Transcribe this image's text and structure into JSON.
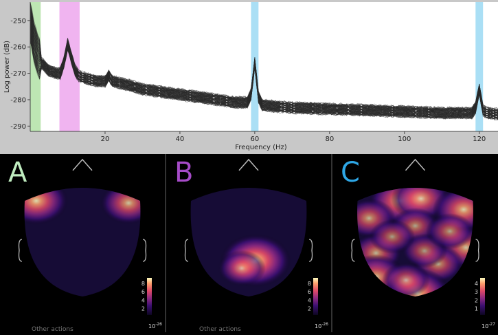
{
  "chart_data": [
    {
      "type": "line",
      "xlabel": "Frequency (Hz)",
      "ylabel": "Log power  (dB)",
      "xlim": [
        0,
        125
      ],
      "ylim": [
        -292,
        -243
      ],
      "xticks": [
        20,
        40,
        60,
        80,
        100,
        120
      ],
      "yticks": [
        -250,
        -260,
        -270,
        -280,
        -290
      ],
      "series_count": 102,
      "mean_spectrum": {
        "x": [
          0,
          1,
          2,
          3,
          5,
          7,
          8,
          9,
          10,
          11,
          12,
          13,
          15,
          18,
          20,
          21,
          22,
          25,
          30,
          35,
          40,
          45,
          50,
          55,
          58,
          59,
          60,
          61,
          62,
          65,
          70,
          80,
          90,
          100,
          110,
          118,
          119,
          120,
          121,
          122,
          125
        ],
        "y": [
          -250,
          -258,
          -263,
          -266,
          -269,
          -270,
          -270,
          -266,
          -259,
          -264,
          -269,
          -271,
          -272,
          -273,
          -273,
          -271,
          -273,
          -274,
          -276,
          -277,
          -278,
          -279,
          -280,
          -281,
          -281,
          -278,
          -266,
          -279,
          -282,
          -282.5,
          -283,
          -283.5,
          -284,
          -284.5,
          -285,
          -285,
          -283,
          -276,
          -284,
          -285,
          -285.5
        ]
      },
      "bands": [
        {
          "name": "",
          "from": 0,
          "to": 2.8,
          "color": "#bde6b3"
        },
        {
          "name": "",
          "from": 7.8,
          "to": 13.2,
          "color": "#f0b4f0"
        },
        {
          "name": "",
          "from": 59,
          "to": 61,
          "color": "#aadff5"
        },
        {
          "name": "",
          "from": 119,
          "to": 121,
          "color": "#aadff5"
        }
      ],
      "line_color": "#2a2a2a"
    },
    {
      "type": "heatmap",
      "panel": "A",
      "letter": "A",
      "letter_color": "#bfecbf",
      "colormap": "magma",
      "colorbar_ticks": [
        "2",
        "4",
        "6",
        "8"
      ],
      "scale": "10",
      "scale_exp": "-26",
      "hotspots": [
        {
          "x": 0.1,
          "y": 0.12,
          "value": 0.85
        },
        {
          "x": 0.9,
          "y": 0.14,
          "value": 0.7
        }
      ]
    },
    {
      "type": "heatmap",
      "panel": "B",
      "letter": "B",
      "letter_color": "#a64bc8",
      "colormap": "magma",
      "colorbar_ticks": [
        "2",
        "4",
        "6",
        "8"
      ],
      "scale": "10",
      "scale_exp": "-26",
      "hotspots": [
        {
          "x": 0.56,
          "y": 0.67,
          "value": 1.0
        },
        {
          "x": 0.44,
          "y": 0.74,
          "value": 0.5
        }
      ]
    },
    {
      "type": "heatmap",
      "panel": "C",
      "letter": "C",
      "letter_color": "#2ea7e6",
      "colormap": "magma",
      "colorbar_ticks": [
        "1",
        "2",
        "3",
        "4"
      ],
      "scale": "10",
      "scale_exp": "-27",
      "hotspots": [
        {
          "x": 0.37,
          "y": 0.12,
          "value": 0.85
        },
        {
          "x": 0.55,
          "y": 0.1,
          "value": 0.75
        },
        {
          "x": 0.92,
          "y": 0.2,
          "value": 0.8
        },
        {
          "x": 0.1,
          "y": 0.28,
          "value": 0.6
        },
        {
          "x": 0.5,
          "y": 0.35,
          "value": 0.5
        },
        {
          "x": 0.94,
          "y": 0.55,
          "value": 0.7
        },
        {
          "x": 0.16,
          "y": 0.6,
          "value": 0.6
        },
        {
          "x": 0.7,
          "y": 0.7,
          "value": 0.55
        },
        {
          "x": 0.16,
          "y": 0.82,
          "value": 0.75
        },
        {
          "x": 0.52,
          "y": 0.97,
          "value": 0.9
        },
        {
          "x": 0.58,
          "y": 0.58,
          "value": 0.45
        },
        {
          "x": 0.8,
          "y": 0.4,
          "value": 0.5
        },
        {
          "x": 0.3,
          "y": 0.45,
          "value": 0.45
        },
        {
          "x": 0.42,
          "y": 0.85,
          "value": 0.5
        }
      ]
    }
  ],
  "bottom_texts": [
    "Other actions",
    "Other actions"
  ]
}
